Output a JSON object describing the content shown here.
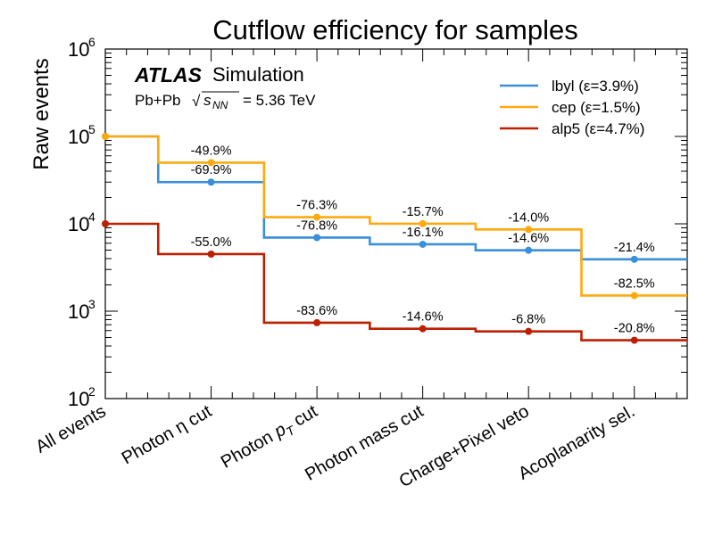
{
  "chart_data": {
    "type": "line",
    "step": true,
    "title": "Cutflow efficiency for samples",
    "xlabel": "",
    "ylabel": "Raw events",
    "yscale": "log",
    "ylim": [
      100,
      1000000
    ],
    "ytick_labels": [
      {
        "base": "10",
        "exp": "2"
      },
      {
        "base": "10",
        "exp": "3"
      },
      {
        "base": "10",
        "exp": "4"
      },
      {
        "base": "10",
        "exp": "5"
      },
      {
        "base": "10",
        "exp": "6"
      }
    ],
    "categories": [
      "All events",
      "Photon η cut",
      "Photon p_T cut",
      "Photon mass cut",
      "Charge+Pixel veto",
      "Acoplanarity sel."
    ],
    "category_display": [
      {
        "main": "All events"
      },
      {
        "main": "Photon η cut"
      },
      {
        "main": "Photon ",
        "italic": "p",
        "sub": "T",
        "rest": " cut"
      },
      {
        "main": "Photon mass cut"
      },
      {
        "main": "Charge+Pixel veto"
      },
      {
        "main": "Acoplanarity sel."
      }
    ],
    "series": [
      {
        "name": "lbyl (ε=3.9%)",
        "color": "#3a8fd9",
        "values": [
          100000,
          30000,
          6950,
          5830,
          4980,
          3920
        ],
        "labels": [
          "",
          "-69.9%",
          "-76.8%",
          "-16.1%",
          "-14.6%",
          "-21.4%"
        ]
      },
      {
        "name": "cep (ε=1.5%)",
        "color": "#ffa90e",
        "values": [
          100000,
          50100,
          11900,
          10030,
          8630,
          1510
        ],
        "labels": [
          "",
          "-49.9%",
          "-76.3%",
          "-15.7%",
          "-14.0%",
          "-82.5%"
        ]
      },
      {
        "name": "alp5 (ε=4.7%)",
        "color": "#bd1f01",
        "values": [
          10000,
          4500,
          738,
          630,
          587,
          465
        ],
        "labels": [
          "",
          "-55.0%",
          "-83.6%",
          "-14.6%",
          "-6.8%",
          "-20.8%"
        ]
      }
    ],
    "legend_position": "top-right",
    "grid": false
  },
  "annotation": {
    "atlas": "ATLAS",
    "simulation": "Simulation",
    "system": "Pb+Pb",
    "sqrt_s_symbol": "√",
    "sqrt_s_var": "s",
    "sqrt_s_sub": "NN",
    "energy": "= 5.36 TeV"
  }
}
